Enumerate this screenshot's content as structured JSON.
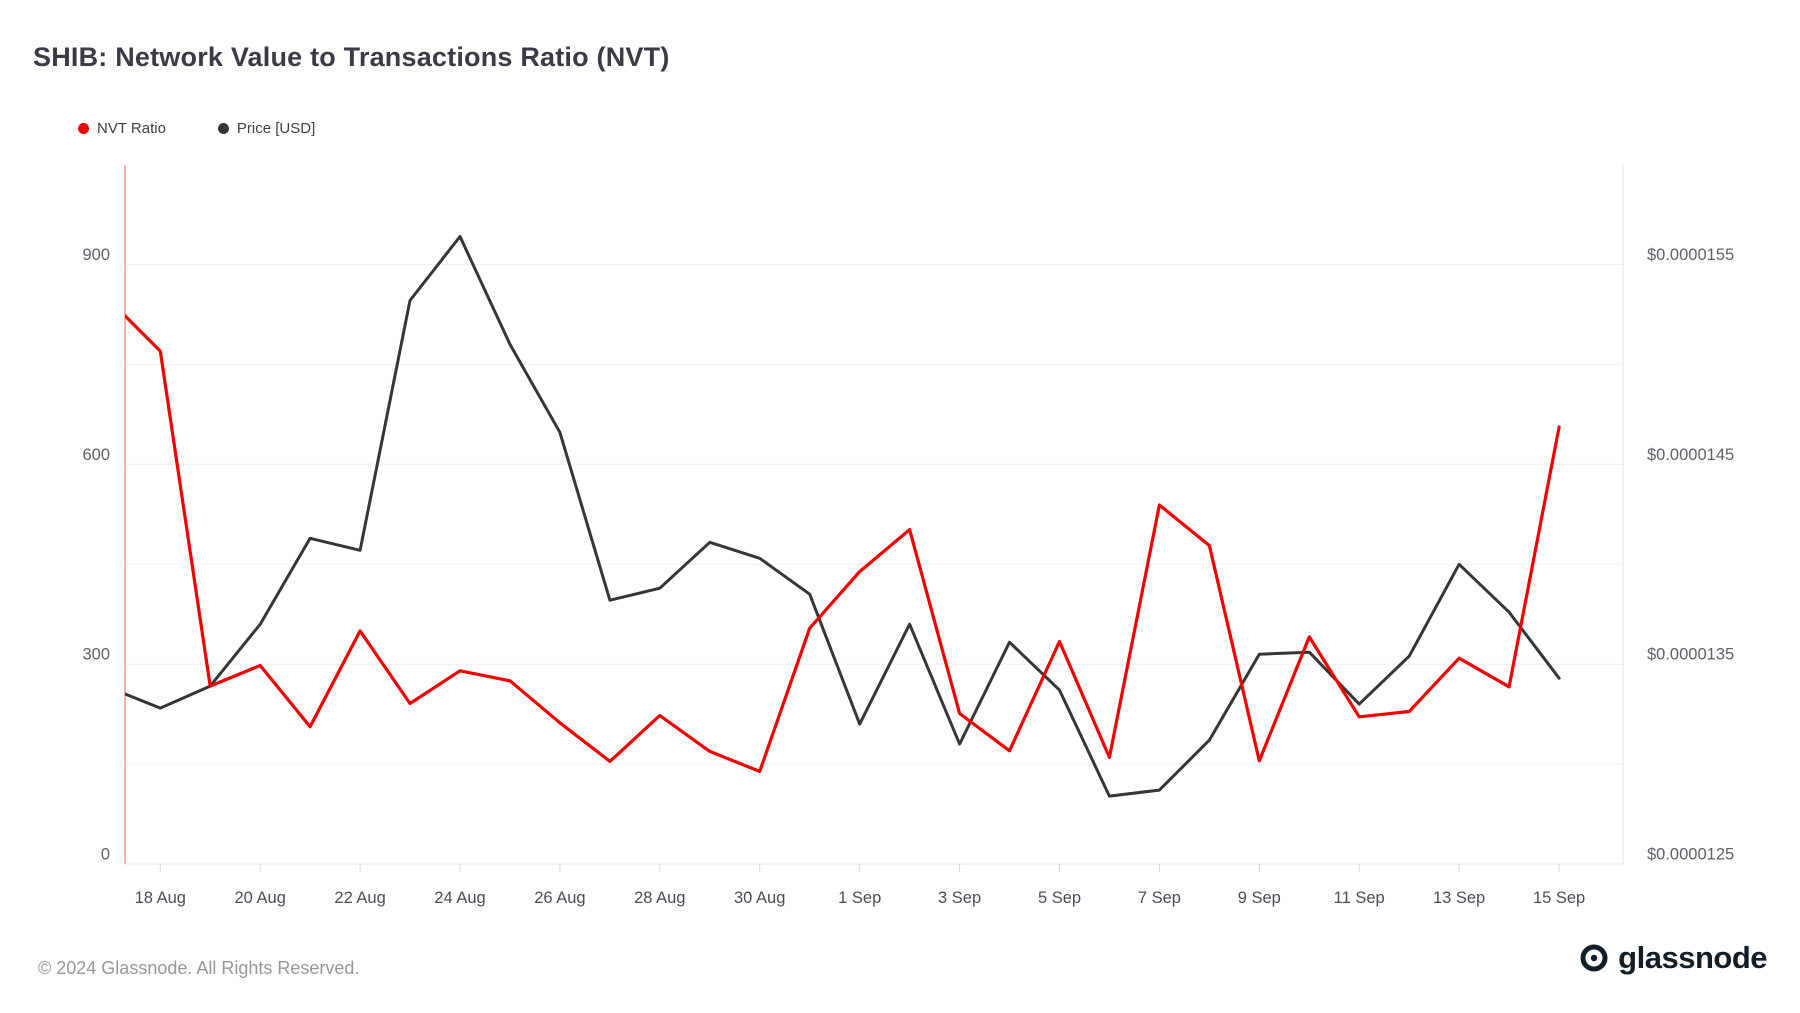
{
  "page": {
    "title": "SHIB: Network Value to Transactions Ratio (NVT)",
    "footer": "© 2024 Glassnode. All Rights Reserved.",
    "brand": "glassnode"
  },
  "legend": {
    "items": [
      {
        "label": "NVT Ratio",
        "color": "#f00000"
      },
      {
        "label": "Price [USD]",
        "color": "#363636"
      }
    ]
  },
  "chart_data": {
    "type": "line",
    "title": "SHIB: Network Value to Transactions Ratio (NVT)",
    "x": [
      "17 Aug",
      "18 Aug",
      "19 Aug",
      "20 Aug",
      "21 Aug",
      "22 Aug",
      "23 Aug",
      "24 Aug",
      "25 Aug",
      "26 Aug",
      "27 Aug",
      "28 Aug",
      "29 Aug",
      "30 Aug",
      "31 Aug",
      "1 Sep",
      "2 Sep",
      "3 Sep",
      "4 Sep",
      "5 Sep",
      "6 Sep",
      "7 Sep",
      "8 Sep",
      "9 Sep",
      "10 Sep",
      "11 Sep",
      "12 Sep",
      "13 Sep",
      "14 Sep",
      "15 Sep"
    ],
    "x_tick_labels": [
      "18 Aug",
      "20 Aug",
      "22 Aug",
      "24 Aug",
      "26 Aug",
      "28 Aug",
      "30 Aug",
      "1 Sep",
      "3 Sep",
      "5 Sep",
      "7 Sep",
      "9 Sep",
      "11 Sep",
      "13 Sep",
      "15 Sep"
    ],
    "x_tick_indices": [
      1,
      3,
      5,
      7,
      9,
      11,
      13,
      15,
      17,
      19,
      21,
      23,
      25,
      27,
      29
    ],
    "series": [
      {
        "name": "NVT Ratio",
        "axis": "left",
        "color": "#f00000",
        "values": [
          845,
          770,
          267,
          298,
          206,
          350,
          241,
          290,
          275,
          212,
          154,
          223,
          169,
          139,
          354,
          439,
          502,
          226,
          170,
          334,
          160,
          539,
          478,
          155,
          341,
          221,
          229,
          309,
          266,
          656
        ]
      },
      {
        "name": "Price [USD]",
        "axis": "right",
        "color": "#363636",
        "values": [
          1.338e-05,
          1.328e-05,
          1.339e-05,
          1.37e-05,
          1.413e-05,
          1.407e-05,
          1.532e-05,
          1.564e-05,
          1.51e-05,
          1.466e-05,
          1.382e-05,
          1.388e-05,
          1.411e-05,
          1.403e-05,
          1.385e-05,
          1.32e-05,
          1.37e-05,
          1.31e-05,
          1.361e-05,
          1.337e-05,
          1.284e-05,
          1.287e-05,
          1.312e-05,
          1.355e-05,
          1.356e-05,
          1.33e-05,
          1.354e-05,
          1.4e-05,
          1.376e-05,
          1.343e-05
        ]
      }
    ],
    "y_left": {
      "ticks": [
        0,
        300,
        600,
        900
      ],
      "range": [
        0,
        1050
      ],
      "gridlines": [
        150,
        300,
        450,
        600,
        750,
        900
      ]
    },
    "y_right": {
      "ticks": [
        {
          "label": "$0.0000125",
          "value": 1.25e-05
        },
        {
          "label": "$0.0000135",
          "value": 1.35e-05
        },
        {
          "label": "$0.0000145",
          "value": 1.45e-05
        },
        {
          "label": "$0.0000155",
          "value": 1.55e-05
        }
      ],
      "range": [
        1.25e-05,
        1.6e-05
      ]
    },
    "legend_position": "top-left",
    "grid": true
  },
  "colors": {
    "grid": "#f0f0f0",
    "axis_border": "#e3e3e3",
    "tick_mark": "#d8d8d8",
    "left_axis_line": "#f9b0b0",
    "y_label": "#5f5f66",
    "x_label": "#4c4c55"
  }
}
